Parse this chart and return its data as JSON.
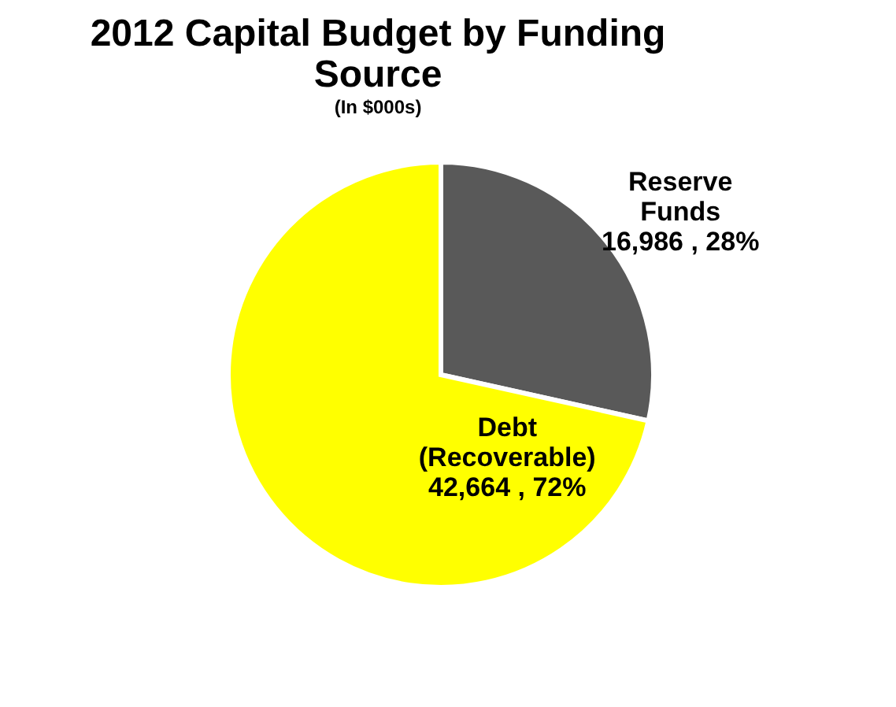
{
  "chart_data": {
    "type": "pie",
    "title": "2012 Capital Budget by Funding Source",
    "subtitle": "(In $000s)",
    "categories": [
      "Reserve Funds",
      "Debt (Recoverable)"
    ],
    "values": [
      16986,
      42664
    ],
    "colors": [
      "#595959",
      "#ffff00"
    ],
    "value_labels": [
      "16,986 , 28%",
      "42,664 , 72%"
    ]
  }
}
